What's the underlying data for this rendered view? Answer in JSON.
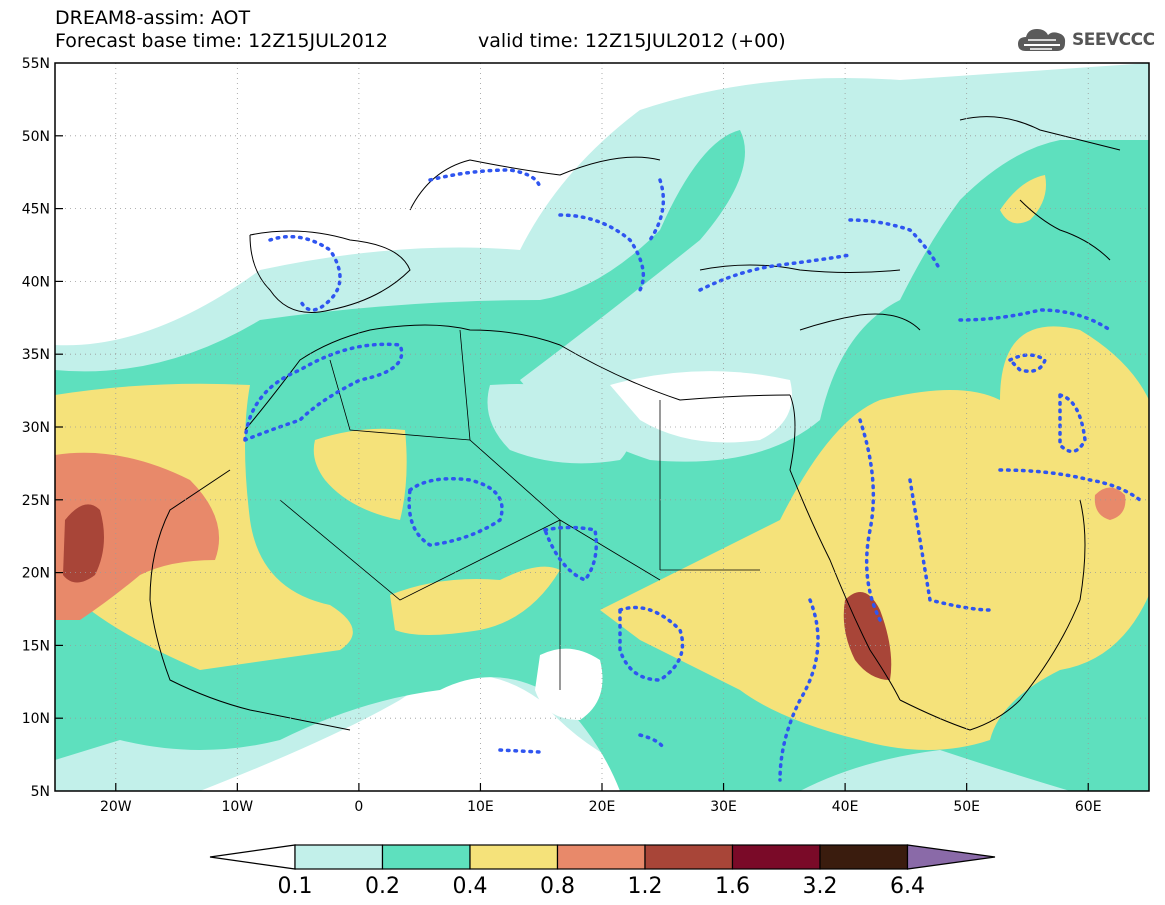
{
  "header": {
    "title_line1": "DREAM8-assim: AOT",
    "title_line2": "Forecast base time: 12Z15JUL2012",
    "valid_time": "valid time: 12Z15JUL2012 (+00)",
    "logo_text": "SEEVCCC",
    "logo_icon": "cloud-icon"
  },
  "map": {
    "projection": "lat-lon",
    "lon_range": [
      -25,
      65
    ],
    "lat_range": [
      5,
      55
    ],
    "lon_labels": [
      "20W",
      "10W",
      "0",
      "10E",
      "20E",
      "30E",
      "40E",
      "50E",
      "60E"
    ],
    "lat_labels": [
      "55N",
      "50N",
      "45N",
      "40N",
      "35N",
      "30N",
      "25N",
      "20N",
      "15N",
      "10N",
      "5N"
    ],
    "field": "Aerosol optical thickness",
    "observation_overlay": "blue dotted contours"
  },
  "colorbar": {
    "labels": [
      "0.1",
      "0.2",
      "0.4",
      "0.8",
      "1.2",
      "1.6",
      "3.2",
      "6.4"
    ],
    "colors": [
      "#ffffff",
      "#c2f0ea",
      "#5ee0be",
      "#f5e27a",
      "#e8896a",
      "#a84538",
      "#7a0a28",
      "#3a1c0e",
      "#8a6aa8"
    ]
  },
  "colors": {
    "coast": "#000000",
    "obs_contour": "#2f55f0",
    "grid": "#9a9a9a"
  }
}
